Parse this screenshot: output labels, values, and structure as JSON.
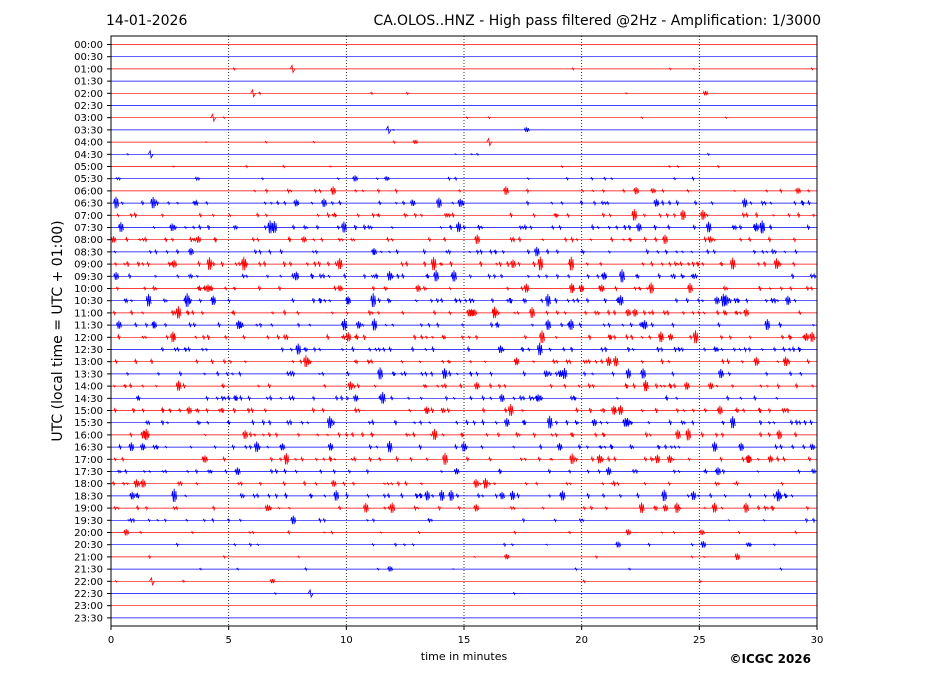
{
  "header": {
    "date": "14-01-2026",
    "title": "CA.OLOS..HNZ - High pass filtered @2Hz - Amplification: 1/3000"
  },
  "copyright": "©ICGC 2026",
  "colors": {
    "even_row": "#ff0000",
    "odd_row": "#0000ff",
    "grid": "#000000"
  },
  "chart_data": {
    "type": "seismogram",
    "xlabel": "time in minutes",
    "ylabel": "UTC (local time = UTC + 01:00)",
    "xlim": [
      0,
      30
    ],
    "x_ticks": [
      "0",
      "5",
      "10",
      "15",
      "20",
      "25",
      "30"
    ],
    "x_tick_values": [
      0,
      5,
      10,
      15,
      20,
      25,
      30
    ],
    "grid_x": "dotted vertical lines at each 5 minutes",
    "rows": [
      {
        "label": "00:00",
        "activity": 0.0
      },
      {
        "label": "00:30",
        "activity": 0.0
      },
      {
        "label": "01:00",
        "activity": 0.05
      },
      {
        "label": "01:30",
        "activity": 0.0
      },
      {
        "label": "02:00",
        "activity": 0.05
      },
      {
        "label": "02:30",
        "activity": 0.0
      },
      {
        "label": "03:00",
        "activity": 0.05
      },
      {
        "label": "03:30",
        "activity": 0.02
      },
      {
        "label": "04:00",
        "activity": 0.05
      },
      {
        "label": "04:30",
        "activity": 0.05
      },
      {
        "label": "05:00",
        "activity": 0.1
      },
      {
        "label": "05:30",
        "activity": 0.2
      },
      {
        "label": "06:00",
        "activity": 0.3
      },
      {
        "label": "06:30",
        "activity": 0.6
      },
      {
        "label": "07:00",
        "activity": 0.6
      },
      {
        "label": "07:30",
        "activity": 0.7
      },
      {
        "label": "08:00",
        "activity": 0.6
      },
      {
        "label": "08:30",
        "activity": 0.6
      },
      {
        "label": "09:00",
        "activity": 0.8
      },
      {
        "label": "09:30",
        "activity": 0.7
      },
      {
        "label": "10:00",
        "activity": 0.6
      },
      {
        "label": "10:30",
        "activity": 0.8
      },
      {
        "label": "11:00",
        "activity": 0.7
      },
      {
        "label": "11:30",
        "activity": 0.6
      },
      {
        "label": "12:00",
        "activity": 0.7
      },
      {
        "label": "12:30",
        "activity": 0.7
      },
      {
        "label": "13:00",
        "activity": 0.6
      },
      {
        "label": "13:30",
        "activity": 0.6
      },
      {
        "label": "14:00",
        "activity": 0.6
      },
      {
        "label": "14:30",
        "activity": 0.6
      },
      {
        "label": "15:00",
        "activity": 0.7
      },
      {
        "label": "15:30",
        "activity": 0.7
      },
      {
        "label": "16:00",
        "activity": 0.6
      },
      {
        "label": "16:30",
        "activity": 0.6
      },
      {
        "label": "17:00",
        "activity": 0.6
      },
      {
        "label": "17:30",
        "activity": 0.5
      },
      {
        "label": "18:00",
        "activity": 0.5
      },
      {
        "label": "18:30",
        "activity": 0.7
      },
      {
        "label": "19:00",
        "activity": 0.5
      },
      {
        "label": "19:30",
        "activity": 0.3
      },
      {
        "label": "20:00",
        "activity": 0.2
      },
      {
        "label": "20:30",
        "activity": 0.2
      },
      {
        "label": "21:00",
        "activity": 0.1
      },
      {
        "label": "21:30",
        "activity": 0.1
      },
      {
        "label": "22:00",
        "activity": 0.05
      },
      {
        "label": "22:30",
        "activity": 0.02
      },
      {
        "label": "23:00",
        "activity": 0.0
      },
      {
        "label": "23:30",
        "activity": 0.0
      }
    ]
  }
}
